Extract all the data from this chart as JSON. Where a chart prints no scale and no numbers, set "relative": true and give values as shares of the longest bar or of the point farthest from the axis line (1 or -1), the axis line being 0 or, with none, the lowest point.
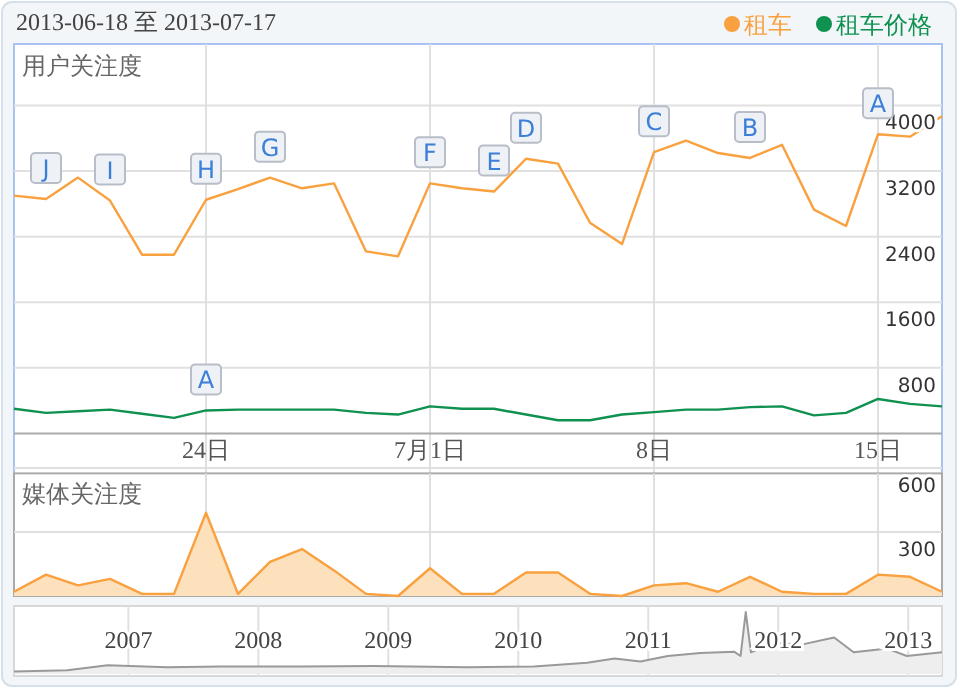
{
  "chart_data": [
    {
      "type": "line",
      "title": "2013-06-18 至 2013-07-17",
      "ylabel": "用户关注度",
      "legend": "top right",
      "grid": true,
      "marker": "none",
      "line_style": "solid",
      "x": [
        "2013-06-18",
        "2013-06-19",
        "2013-06-20",
        "2013-06-21",
        "2013-06-22",
        "2013-06-23",
        "2013-06-24",
        "2013-06-25",
        "2013-06-26",
        "2013-06-27",
        "2013-06-28",
        "2013-06-29",
        "2013-06-30",
        "2013-07-01",
        "2013-07-02",
        "2013-07-03",
        "2013-07-04",
        "2013-07-05",
        "2013-07-06",
        "2013-07-07",
        "2013-07-08",
        "2013-07-09",
        "2013-07-10",
        "2013-07-11",
        "2013-07-12",
        "2013-07-13",
        "2013-07-14",
        "2013-07-15",
        "2013-07-16",
        "2013-07-17"
      ],
      "xlim": [
        "2013-06-18",
        "2013-07-17"
      ],
      "xticks": [
        {
          "value": "2013-06-24",
          "label": "24日"
        },
        {
          "value": "2013-07-01",
          "label": "7月1日"
        },
        {
          "value": "2013-07-08",
          "label": "8日"
        },
        {
          "value": "2013-07-15",
          "label": "15日"
        }
      ],
      "ylim": [
        0,
        4750
      ],
      "yticks": [
        800,
        1600,
        2400,
        3200,
        4000
      ],
      "series": [
        {
          "name": "租车",
          "color": "#f9a03f",
          "values": [
            2900,
            2860,
            3120,
            2840,
            2180,
            2180,
            2850,
            2980,
            3120,
            2990,
            3050,
            2220,
            2160,
            3050,
            2990,
            2950,
            3350,
            3290,
            2570,
            2310,
            3430,
            3570,
            3420,
            3360,
            3520,
            2730,
            2530,
            3650,
            3620,
            3870
          ]
        },
        {
          "name": "租车价格",
          "color": "#0f9150",
          "values": [
            300,
            250,
            270,
            290,
            240,
            190,
            280,
            290,
            290,
            290,
            290,
            250,
            230,
            330,
            300,
            300,
            230,
            160,
            160,
            230,
            260,
            290,
            290,
            320,
            330,
            220,
            250,
            420,
            360,
            330
          ]
        }
      ],
      "annotations": [
        {
          "text": "J",
          "x": "2013-06-19",
          "y": 2860
        },
        {
          "text": "I",
          "x": "2013-06-21",
          "y": 2840
        },
        {
          "text": "H",
          "x": "2013-06-24",
          "y": 2850
        },
        {
          "text": "G",
          "x": "2013-06-26",
          "y": 3120
        },
        {
          "text": "F",
          "x": "2013-07-01",
          "y": 3050
        },
        {
          "text": "E",
          "x": "2013-07-03",
          "y": 2950
        },
        {
          "text": "D",
          "x": "2013-07-04",
          "y": 3350
        },
        {
          "text": "C",
          "x": "2013-07-08",
          "y": 3430
        },
        {
          "text": "B",
          "x": "2013-07-11",
          "y": 3360
        },
        {
          "text": "A",
          "x": "2013-07-15",
          "y": 3650
        },
        {
          "text": "A",
          "x": "2013-06-24",
          "y": 280
        }
      ]
    },
    {
      "type": "area",
      "ylabel": "媒体关注度",
      "grid": true,
      "tick_labels": "y",
      "x": [
        "2013-06-18",
        "2013-06-19",
        "2013-06-20",
        "2013-06-21",
        "2013-06-22",
        "2013-06-23",
        "2013-06-24",
        "2013-06-25",
        "2013-06-26",
        "2013-06-27",
        "2013-06-28",
        "2013-06-29",
        "2013-06-30",
        "2013-07-01",
        "2013-07-02",
        "2013-07-03",
        "2013-07-04",
        "2013-07-05",
        "2013-07-06",
        "2013-07-07",
        "2013-07-08",
        "2013-07-09",
        "2013-07-10",
        "2013-07-11",
        "2013-07-12",
        "2013-07-13",
        "2013-07-14",
        "2013-07-15",
        "2013-07-16",
        "2013-07-17"
      ],
      "xlim": [
        "2013-06-18",
        "2013-07-17"
      ],
      "xticks": [
        {
          "value": "2013-06-24",
          "label": null
        },
        {
          "value": "2013-07-01",
          "label": null
        },
        {
          "value": "2013-07-08",
          "label": null
        },
        {
          "value": "2013-07-15",
          "label": null
        }
      ],
      "ylim": [
        0,
        600
      ],
      "yticks": [
        300,
        600
      ],
      "series": [
        {
          "color": "#f9a03f",
          "values": [
            20,
            100,
            50,
            80,
            10,
            10,
            390,
            10,
            160,
            220,
            120,
            10,
            0,
            130,
            10,
            10,
            110,
            110,
            10,
            0,
            50,
            60,
            20,
            90,
            20,
            10,
            10,
            100,
            90,
            20
          ]
        }
      ]
    },
    {
      "type": "area",
      "relative": true,
      "grid": "x",
      "tick_labels": "x",
      "x": [
        2006.42,
        2006.83,
        2007.14,
        2007.6,
        2008.01,
        2008.63,
        2009.19,
        2009.91,
        2010.42,
        2010.83,
        2011.04,
        2011.24,
        2011.45,
        2011.7,
        2011.96,
        2012.01,
        2012.05,
        2012.09,
        2012.27,
        2012.47,
        2012.73,
        2012.88,
        2013.14,
        2013.29,
        2013.56
      ],
      "xlim": [
        2006.42,
        2013.56
      ],
      "xticks": [
        {
          "value": 2007.3,
          "label": "2007"
        },
        {
          "value": 2008.3,
          "label": "2008"
        },
        {
          "value": 2009.3,
          "label": "2009"
        },
        {
          "value": 2010.3,
          "label": "2010"
        },
        {
          "value": 2011.3,
          "label": "2011"
        },
        {
          "value": 2012.3,
          "label": "2012"
        },
        {
          "value": 2013.3,
          "label": "2013"
        }
      ],
      "series": [
        {
          "color": "#999999",
          "values": [
            0.04,
            0.06,
            0.14,
            0.11,
            0.12,
            0.12,
            0.13,
            0.11,
            0.12,
            0.18,
            0.25,
            0.2,
            0.29,
            0.34,
            0.36,
            0.29,
            1.0,
            0.35,
            0.51,
            0.47,
            0.59,
            0.35,
            0.41,
            0.29,
            0.35
          ]
        }
      ]
    }
  ]
}
